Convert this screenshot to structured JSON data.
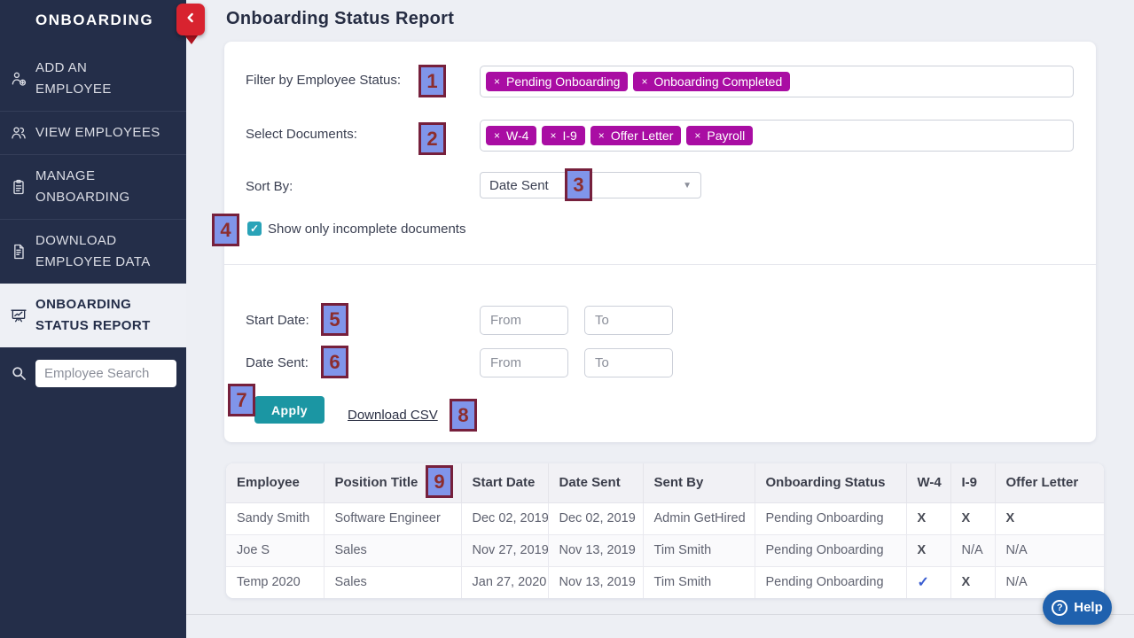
{
  "sidebar": {
    "title": "ONBOARDING",
    "items": [
      {
        "label": "ADD AN\nEMPLOYEE",
        "icon": "add-employee",
        "active": false
      },
      {
        "label": "VIEW EMPLOYEES",
        "icon": "view-employees",
        "active": false
      },
      {
        "label": "MANAGE\nONBOARDING",
        "icon": "manage-onboarding",
        "active": false
      },
      {
        "label": "DOWNLOAD\nEMPLOYEE DATA",
        "icon": "download-employee-data",
        "active": false
      },
      {
        "label": "ONBOARDING\nSTATUS REPORT",
        "icon": "onboarding-status-report",
        "active": true
      }
    ],
    "search": {
      "placeholder": "Employee Search",
      "value": ""
    }
  },
  "header": {
    "title": "Onboarding Status Report"
  },
  "filters": {
    "employee_status": {
      "label": "Filter by Employee Status:",
      "tags": [
        "Pending Onboarding",
        "Onboarding Completed"
      ]
    },
    "documents": {
      "label": "Select Documents:",
      "tags": [
        "W-4",
        "I-9",
        "Offer Letter",
        "Payroll"
      ]
    },
    "sort_by": {
      "label": "Sort By:",
      "value": "Date Sent"
    },
    "incomplete_checkbox": {
      "label": "Show only incomplete documents",
      "checked": true
    },
    "start_date": {
      "label": "Start Date:",
      "from_placeholder": "From",
      "to_placeholder": "To",
      "from_value": "",
      "to_value": ""
    },
    "date_sent": {
      "label": "Date Sent:",
      "from_placeholder": "From",
      "to_placeholder": "To",
      "from_value": "",
      "to_value": ""
    },
    "apply_label": "Apply",
    "download_csv_label": "Download CSV"
  },
  "table": {
    "columns": [
      "Employee",
      "Position Title",
      "Start Date",
      "Date Sent",
      "Sent By",
      "Onboarding Status",
      "W-4",
      "I-9",
      "Offer Letter"
    ],
    "rows": [
      [
        "Sandy Smith",
        "Software Engineer",
        "Dec 02, 2019",
        "Dec 02, 2019",
        "Admin GetHired",
        "Pending Onboarding",
        "X",
        "X",
        "X"
      ],
      [
        "Joe S",
        "Sales",
        "Nov 27, 2019",
        "Nov 13, 2019",
        "Tim Smith",
        "Pending Onboarding",
        "X",
        "N/A",
        "N/A"
      ],
      [
        "Temp 2020",
        "Sales",
        "Jan 27, 2020",
        "Nov 13, 2019",
        "Tim Smith",
        "Pending Onboarding",
        "✓",
        "X",
        "N/A"
      ]
    ]
  },
  "help": {
    "label": "Help"
  },
  "annotations": {
    "badges": [
      "1",
      "2",
      "3",
      "4",
      "5",
      "6",
      "7",
      "8",
      "9"
    ]
  },
  "colors": {
    "sidebar_bg": "#242e49",
    "tag_magenta": "#a90da3",
    "apply_teal": "#1b96a3",
    "checkbox_teal": "#29a3b8",
    "help_blue": "#1f61ae",
    "collapse_red": "#d8232f",
    "annotation_fill": "#8095ea",
    "annotation_border": "#76203c",
    "check_mark_blue": "#3b5ed1"
  }
}
